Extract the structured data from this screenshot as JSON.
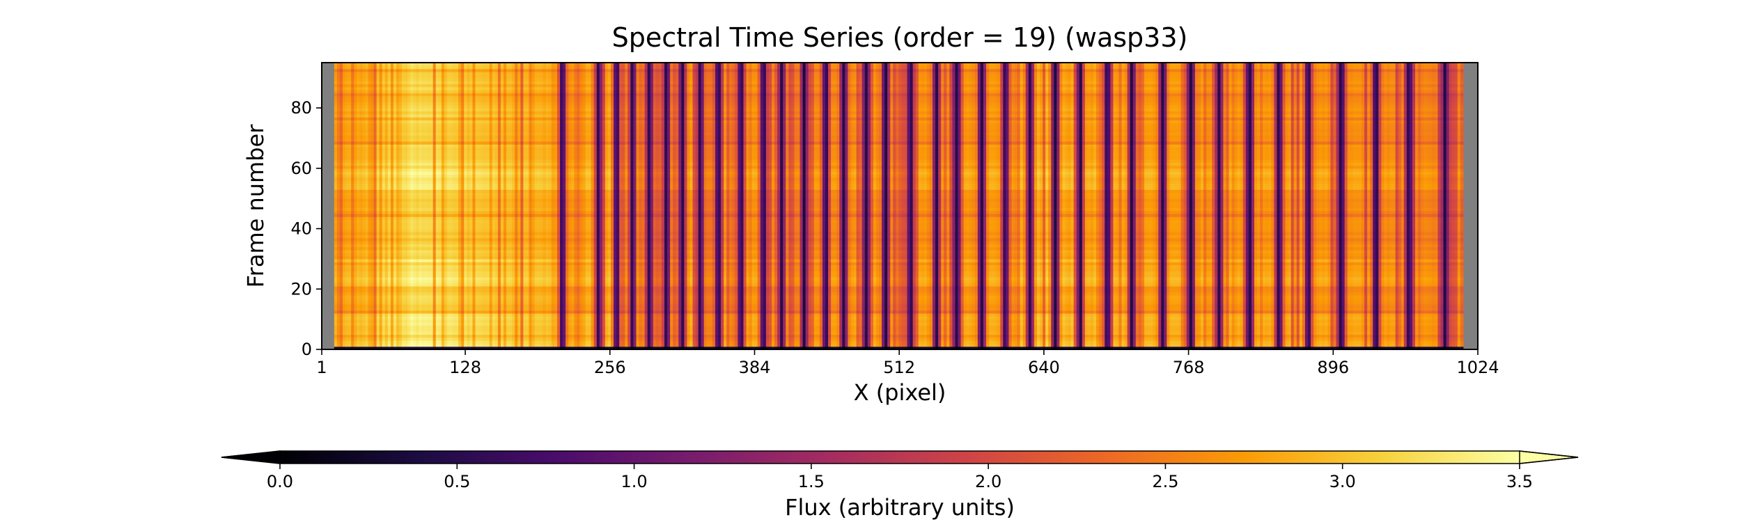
{
  "chart_data": {
    "type": "heatmap",
    "title": "Spectral Time Series (order = 19) (wasp33)",
    "xlabel": "X (pixel)",
    "ylabel": "Frame number",
    "xlim": [
      1,
      1024
    ],
    "ylim": [
      0,
      95
    ],
    "xticks": [
      1,
      128,
      256,
      384,
      512,
      640,
      768,
      896,
      1024
    ],
    "yticks": [
      0,
      20,
      40,
      60,
      80
    ],
    "data_x_range": [
      12,
      1011
    ],
    "n_frames": 95,
    "masked_color": "#808080",
    "absorption_line_centers": [
      214,
      246,
      262,
      276,
      291,
      306,
      320,
      336,
      352,
      372,
      392,
      408,
      428,
      447,
      463,
      483,
      500,
      522,
      545,
      563,
      585,
      606,
      628,
      650,
      672,
      696,
      718,
      745,
      770,
      795,
      822,
      848,
      874,
      903,
      934,
      963,
      995
    ],
    "flux_profile_x": [
      12,
      40,
      60,
      80,
      100,
      128,
      160,
      200,
      230,
      256,
      300,
      384,
      512,
      600,
      640,
      700,
      768,
      900,
      1011
    ],
    "flux_profile_continuum": [
      2.8,
      2.95,
      3.15,
      3.3,
      3.25,
      3.15,
      3.05,
      2.95,
      2.9,
      2.95,
      2.85,
      2.75,
      2.75,
      2.8,
      3.0,
      2.85,
      2.8,
      2.75,
      2.6
    ],
    "bright_frame_bands": [
      [
        0,
        12
      ],
      [
        20,
        30
      ],
      [
        52,
        62
      ]
    ],
    "colorbar": {
      "label": "Flux (arbitrary units)",
      "colormap": "inferno",
      "vmin": 0.0,
      "vmax": 3.5,
      "ticks": [
        "0.0",
        "0.5",
        "1.0",
        "1.5",
        "2.0",
        "2.5",
        "3.0",
        "3.5"
      ],
      "extend": "both",
      "colors": [
        "#000004",
        "#1b0c41",
        "#4a0c6b",
        "#781c6d",
        "#a52c60",
        "#cf4446",
        "#ed6925",
        "#fb9b06",
        "#f7d13d",
        "#fcffa4"
      ]
    }
  }
}
